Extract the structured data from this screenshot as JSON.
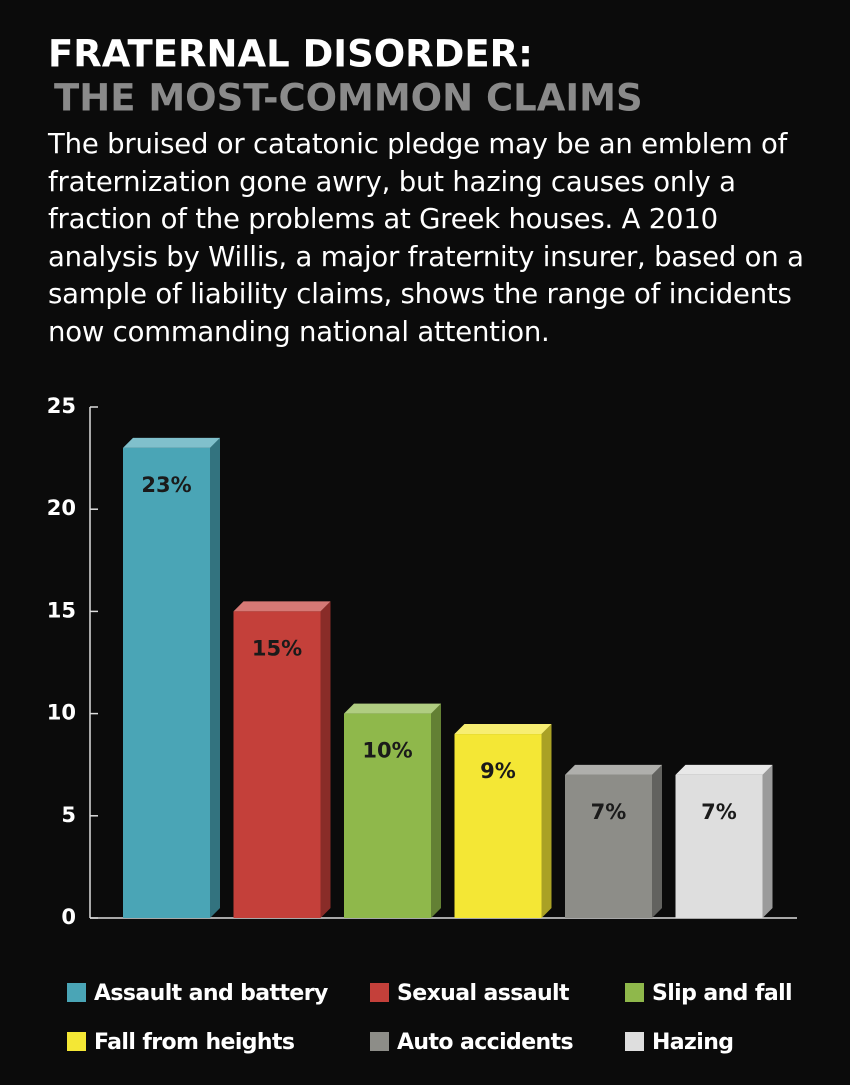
{
  "chart_data": {
    "type": "bar",
    "title": "FRATERNAL DISORDER:",
    "subtitle": "THE MOST-COMMON CLAIMS",
    "description": "The bruised or catatonic pledge may be an emblem of fraternization gone awry, but hazing causes only a fraction of the problems at Greek houses. A 2010 analysis by Willis, a major fraternity insurer, based on a sample of liability claims, shows the range of incidents now commanding national attention.",
    "ylim": [
      0,
      25
    ],
    "yticks": [
      0,
      5,
      10,
      15,
      20,
      25
    ],
    "series": [
      {
        "name": "Assault and battery",
        "color": "#4aa5b6",
        "values": [
          23
        ],
        "value_labels": [
          "23%"
        ]
      },
      {
        "name": "Sexual assault",
        "color": "#c4403a",
        "values": [
          15
        ],
        "value_labels": [
          "15%"
        ]
      },
      {
        "name": "Slip and fall",
        "color": "#8fb84b",
        "values": [
          10
        ],
        "value_labels": [
          "10%"
        ]
      },
      {
        "name": "Fall from heights",
        "color": "#f4e735",
        "values": [
          9
        ],
        "value_labels": [
          "9%"
        ]
      },
      {
        "name": "Auto accidents",
        "color": "#8d8d88",
        "values": [
          7
        ],
        "value_labels": [
          "7%"
        ]
      },
      {
        "name": "Hazing",
        "color": "#dedede",
        "values": [
          7
        ],
        "value_labels": [
          "7%"
        ]
      }
    ]
  }
}
